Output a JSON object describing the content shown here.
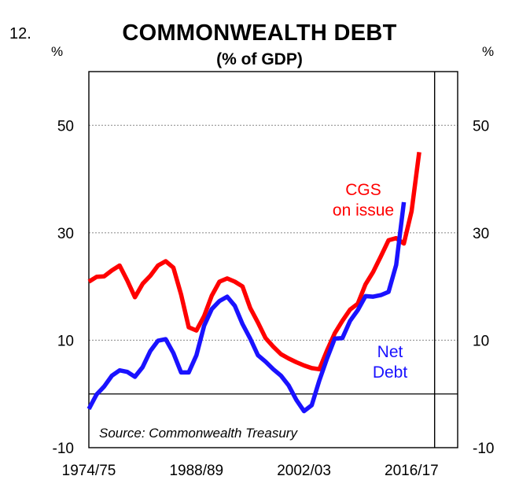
{
  "figure": {
    "number": "12.",
    "title": "COMMONWEALTH DEBT",
    "subtitle": "(% of GDP)"
  },
  "units": {
    "left": "%",
    "right": "%"
  },
  "source": "Source: Commonwealth Treasury",
  "colors": {
    "cgs": "#ff0000",
    "net": "#1a12ff",
    "grid": "#888888",
    "axis": "#000000"
  },
  "chart_data": {
    "type": "line",
    "title": "COMMONWEALTH DEBT",
    "subtitle": "(% of GDP)",
    "ylabel": "%",
    "ylim": [
      -10,
      60
    ],
    "yticks": [
      -10,
      10,
      30,
      50
    ],
    "y_gridlines": [
      0,
      10,
      30,
      50
    ],
    "x": [
      1974,
      1975,
      1976,
      1977,
      1978,
      1979,
      1980,
      1981,
      1982,
      1983,
      1984,
      1985,
      1986,
      1987,
      1988,
      1989,
      1990,
      1991,
      1992,
      1993,
      1994,
      1995,
      1996,
      1997,
      1998,
      1999,
      2000,
      2001,
      2002,
      2003,
      2004,
      2005,
      2006,
      2007,
      2008,
      2009,
      2010,
      2011,
      2012,
      2013,
      2014,
      2015,
      2016,
      2017,
      2018,
      2019,
      2020
    ],
    "xticks": [
      {
        "year": 1974,
        "label": "1974/75"
      },
      {
        "year": 1988,
        "label": "1988/89"
      },
      {
        "year": 2002,
        "label": "2002/03"
      },
      {
        "year": 2016,
        "label": "2016/17"
      }
    ],
    "xlim": [
      1974,
      2022
    ],
    "forecast_divider_year": 2019,
    "series": [
      {
        "name": "CGS on issue",
        "label_lines": [
          "CGS",
          "on issue"
        ],
        "color": "#ff0000",
        "values": [
          20.9,
          21.8,
          21.9,
          23.0,
          23.9,
          21.1,
          18.0,
          20.5,
          22.0,
          23.9,
          24.7,
          23.5,
          18.5,
          12.4,
          11.8,
          14.5,
          18.3,
          20.9,
          21.5,
          20.9,
          20.0,
          16.0,
          13.3,
          10.4,
          8.8,
          7.4,
          6.6,
          5.9,
          5.3,
          4.8,
          4.6,
          8.1,
          11.3,
          13.6,
          15.7,
          16.8,
          20.4,
          22.7,
          25.6,
          28.6,
          29.0,
          28.0,
          34.0,
          45.0,
          null,
          null,
          null
        ]
      },
      {
        "name": "Net Debt",
        "label_lines": [
          "Net",
          "Debt"
        ],
        "color": "#1a12ff",
        "values": [
          -2.8,
          -0.1,
          1.4,
          3.4,
          4.4,
          4.1,
          3.2,
          5.0,
          8.0,
          9.9,
          10.2,
          7.6,
          4.0,
          4.0,
          7.2,
          12.7,
          15.8,
          17.3,
          18.1,
          16.4,
          13.0,
          10.3,
          7.2,
          6.0,
          4.6,
          3.4,
          1.6,
          -1.1,
          -3.2,
          -2.1,
          2.5,
          6.6,
          10.3,
          10.4,
          13.6,
          15.6,
          18.2,
          18.1,
          18.4,
          19.0,
          24.0,
          35.7,
          null,
          null,
          null,
          null,
          null
        ]
      }
    ],
    "source": "Source: Commonwealth Treasury"
  }
}
